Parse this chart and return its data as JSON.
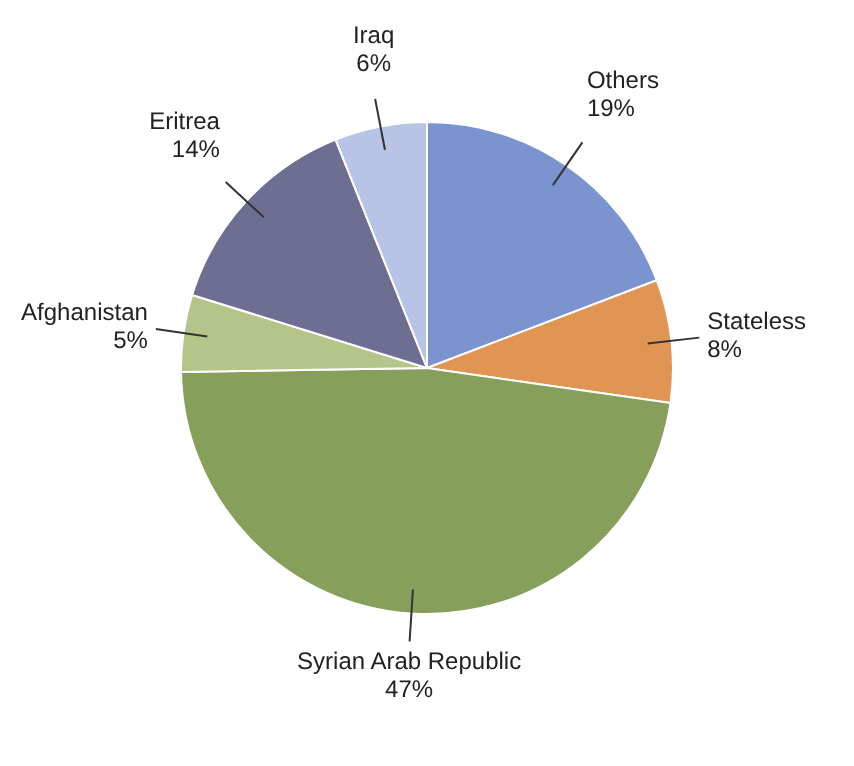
{
  "chart_data": {
    "type": "pie",
    "categories": [
      "Others",
      "Stateless",
      "Syrian Arab Republic",
      "Afghanistan",
      "Eritrea",
      "Iraq"
    ],
    "values": [
      19,
      8,
      47,
      5,
      14,
      6
    ],
    "value_labels": [
      "19%",
      "8%",
      "47%",
      "5%",
      "14%",
      "6%"
    ],
    "colors": [
      "#7b93cf",
      "#e09555",
      "#86a05c",
      "#b5c58a",
      "#6e6e93",
      "#b7c4e6"
    ],
    "legend": false
  }
}
